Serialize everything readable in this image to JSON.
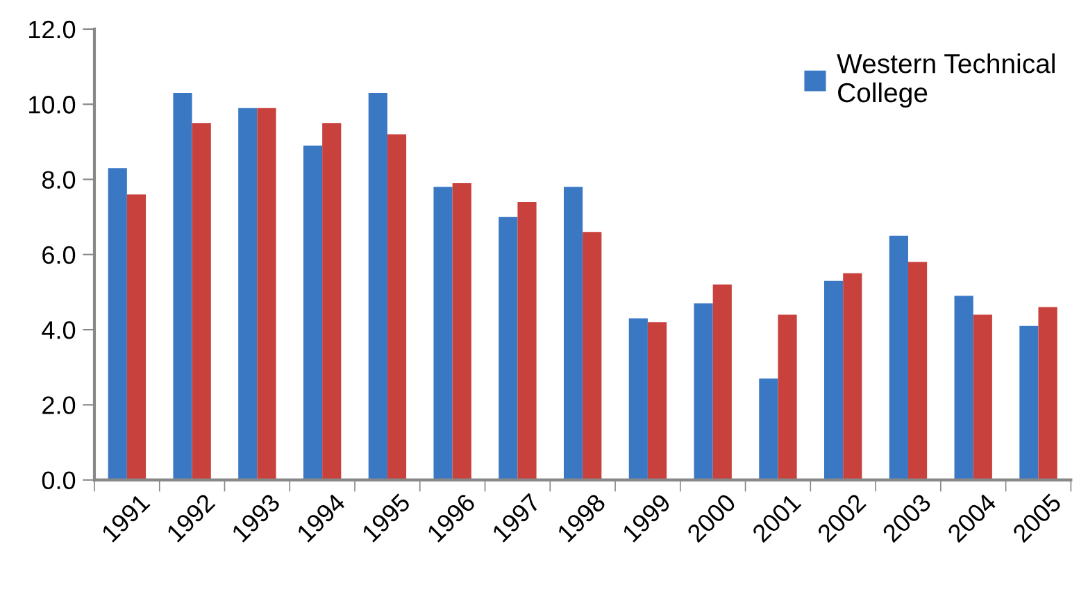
{
  "chart_data": {
    "type": "bar",
    "categories": [
      "1991",
      "1992",
      "1993",
      "1994",
      "1995",
      "1996",
      "1997",
      "1998",
      "1999",
      "2000",
      "2001",
      "2002",
      "2003",
      "2004",
      "2005"
    ],
    "series": [
      {
        "name": "Western Technical College",
        "color": "#3a78c4",
        "values": [
          8.3,
          10.3,
          9.9,
          8.9,
          10.3,
          7.8,
          7.0,
          7.8,
          4.3,
          4.7,
          2.7,
          5.3,
          6.5,
          4.9,
          4.1
        ]
      },
      {
        "color": "#c9413c",
        "values": [
          7.6,
          9.5,
          9.9,
          9.5,
          9.2,
          7.9,
          7.4,
          6.6,
          4.2,
          5.2,
          4.4,
          5.5,
          5.8,
          4.4,
          4.6
        ]
      }
    ],
    "ylim": [
      0,
      12
    ],
    "yticks": [
      {
        "value": 0,
        "label": "0.0"
      },
      {
        "value": 2,
        "label": "2.0"
      },
      {
        "value": 4,
        "label": "4.0"
      },
      {
        "value": 6,
        "label": "6.0"
      },
      {
        "value": 8,
        "label": "8.0"
      },
      {
        "value": 10,
        "label": "10.0"
      },
      {
        "value": 12,
        "label": "12.0"
      }
    ],
    "legend": "top right",
    "grid": false
  }
}
